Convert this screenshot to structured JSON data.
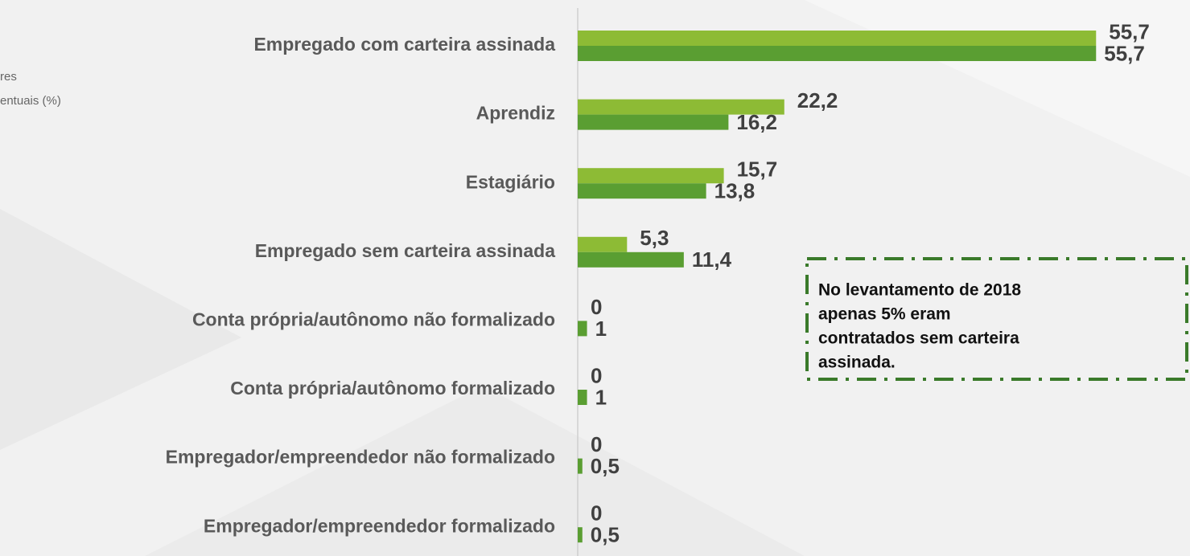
{
  "chart_data": {
    "type": "hbar",
    "notes": [
      "res",
      "entuais (%)"
    ],
    "categories": [
      "Empregado com carteira assinada",
      "Aprendiz",
      "Estagiário",
      "Empregado sem carteira assinada",
      "Conta própria/autônomo não formalizado",
      "Conta própria/autônomo formalizado",
      "Empregador/empreendedor não formalizado",
      "Empregador/empreendedor formalizado"
    ],
    "series": [
      {
        "color": "#8dbb35",
        "values": [
          55.7,
          22.2,
          15.7,
          5.3,
          0,
          0,
          0,
          0
        ],
        "value_labels": [
          "55,7",
          "22,2",
          "15,7",
          "5,3",
          "0",
          "0",
          "0",
          "0"
        ]
      },
      {
        "color": "#5a9e32",
        "values": [
          55.7,
          16.2,
          13.8,
          11.4,
          1,
          1,
          0.5,
          0.5
        ],
        "value_labels": [
          "55,7",
          "16,2",
          "13,8",
          "11,4",
          "1",
          "1",
          "0,5",
          "0,5"
        ]
      }
    ],
    "xlim": [
      0,
      60
    ],
    "annotation": [
      "No levantamento de 2018",
      "apenas 5% eram",
      "contratados sem carteira",
      "assinada."
    ]
  }
}
